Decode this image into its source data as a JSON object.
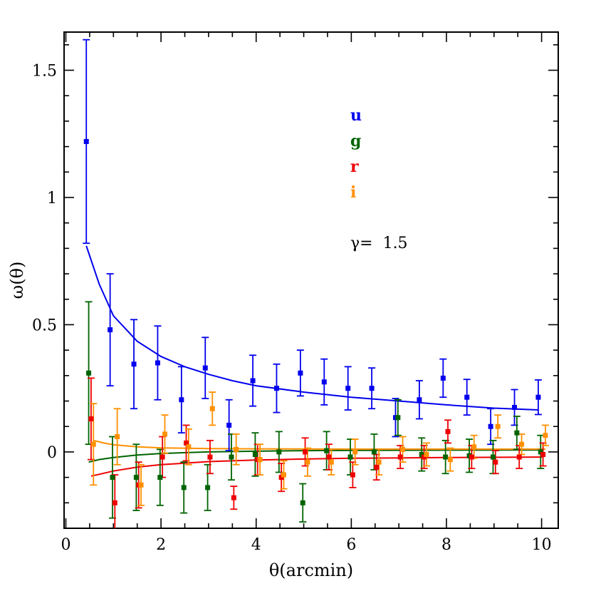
{
  "chart_data": {
    "type": "scatter",
    "xlabel": "θ(arcmin)",
    "ylabel": "ω(θ)",
    "xlim": [
      0,
      10.35
    ],
    "ylim": [
      -0.3,
      1.65
    ],
    "xticks": [
      0,
      2,
      4,
      6,
      8,
      10
    ],
    "yticks": [
      0,
      0.5,
      1,
      1.5
    ],
    "x_tick_labels": [
      "0",
      "2",
      "4",
      "6",
      "8",
      "10"
    ],
    "y_tick_labels": [
      "0",
      "0.5",
      "1",
      "1.5"
    ],
    "x_minor_step": 0.5,
    "y_minor_step": 0.1,
    "annotation": "γ=  1.5",
    "legend_placement": "upper-middle",
    "series": [
      {
        "name": "u",
        "color": "#0000ee",
        "x": [
          0.43,
          0.93,
          1.43,
          1.93,
          2.43,
          2.93,
          3.43,
          3.93,
          4.43,
          4.93,
          5.43,
          5.93,
          6.43,
          6.93,
          7.43,
          7.93,
          8.43,
          8.93,
          9.43,
          9.93
        ],
        "y": [
          1.22,
          0.48,
          0.345,
          0.35,
          0.205,
          0.33,
          0.105,
          0.28,
          0.25,
          0.31,
          0.275,
          0.25,
          0.25,
          0.135,
          0.205,
          0.29,
          0.215,
          0.1,
          0.175,
          0.215
        ],
        "err": [
          0.4,
          0.22,
          0.175,
          0.145,
          0.13,
          0.12,
          0.1,
          0.1,
          0.095,
          0.09,
          0.09,
          0.085,
          0.08,
          0.075,
          0.075,
          0.075,
          0.07,
          0.07,
          0.07,
          0.068
        ],
        "fit": {
          "x": [
            0.43,
            0.7,
            1.0,
            1.5,
            2.0,
            2.5,
            3.0,
            3.5,
            4.0,
            5.0,
            6.0,
            7.0,
            8.0,
            9.0,
            9.93
          ],
          "y": [
            0.81,
            0.66,
            0.535,
            0.435,
            0.375,
            0.335,
            0.305,
            0.28,
            0.26,
            0.235,
            0.215,
            0.2,
            0.185,
            0.172,
            0.165
          ]
        }
      },
      {
        "name": "g",
        "color": "#006400",
        "x": [
          0.48,
          0.98,
          1.48,
          1.98,
          2.48,
          2.98,
          3.48,
          3.98,
          4.48,
          4.98,
          5.48,
          5.98,
          6.48,
          6.98,
          7.48,
          7.98,
          8.48,
          8.98,
          9.48,
          9.98
        ],
        "y": [
          0.31,
          -0.1,
          -0.1,
          -0.1,
          -0.14,
          -0.14,
          -0.02,
          -0.01,
          0.0,
          -0.2,
          0.005,
          -0.02,
          0.0,
          0.135,
          -0.01,
          -0.02,
          -0.015,
          -0.02,
          0.075,
          0.0
        ],
        "err": [
          0.28,
          0.16,
          0.13,
          0.11,
          0.1,
          0.09,
          0.09,
          0.085,
          0.08,
          0.075,
          0.075,
          0.07,
          0.07,
          0.07,
          0.065,
          0.065,
          0.065,
          0.065,
          0.065,
          0.065
        ],
        "fit": {
          "x": [
            0.48,
            0.7,
            1.0,
            1.5,
            2.0,
            3.0,
            4.0,
            5.0,
            6.0,
            8.0,
            9.98
          ],
          "y": [
            -0.04,
            -0.03,
            -0.022,
            -0.012,
            -0.006,
            0.0,
            0.003,
            0.005,
            0.006,
            0.007,
            0.008
          ]
        }
      },
      {
        "name": "r",
        "color": "#ee0000",
        "x": [
          0.53,
          1.03,
          1.53,
          2.03,
          2.53,
          3.03,
          3.53,
          4.03,
          4.53,
          5.03,
          5.53,
          6.03,
          6.53,
          7.03,
          7.53,
          8.03,
          8.53,
          9.03,
          9.53,
          10.03
        ],
        "y": [
          0.13,
          -0.2,
          -0.13,
          -0.02,
          0.035,
          -0.02,
          -0.18,
          -0.03,
          -0.1,
          0.0,
          -0.02,
          -0.09,
          -0.06,
          -0.02,
          -0.02,
          0.08,
          -0.02,
          -0.04,
          -0.02,
          -0.01
        ],
        "err": [
          0.16,
          0.11,
          0.09,
          0.08,
          0.07,
          0.065,
          0.045,
          0.06,
          0.055,
          0.055,
          0.05,
          0.05,
          0.05,
          0.045,
          0.045,
          0.045,
          0.045,
          0.045,
          0.045,
          0.045
        ],
        "fit": {
          "x": [
            0.53,
            0.7,
            1.0,
            1.5,
            2.0,
            3.0,
            4.0,
            5.0,
            6.0,
            8.0,
            10.03
          ],
          "y": [
            -0.095,
            -0.088,
            -0.075,
            -0.06,
            -0.05,
            -0.038,
            -0.032,
            -0.028,
            -0.025,
            -0.022,
            -0.02
          ]
        }
      },
      {
        "name": "i",
        "color": "#ff9000",
        "x": [
          0.58,
          1.08,
          1.58,
          2.08,
          2.58,
          3.08,
          3.58,
          4.08,
          4.58,
          5.08,
          5.58,
          6.08,
          6.58,
          7.08,
          7.58,
          8.08,
          8.58,
          9.08,
          9.58,
          10.08
        ],
        "y": [
          0.03,
          0.06,
          -0.13,
          0.07,
          0.02,
          0.17,
          0.01,
          -0.03,
          -0.09,
          -0.04,
          -0.04,
          0.0,
          -0.04,
          0.01,
          -0.01,
          -0.03,
          0.02,
          0.1,
          0.03,
          0.065
        ],
        "err": [
          0.16,
          0.11,
          0.08,
          0.075,
          0.07,
          0.065,
          0.06,
          0.06,
          0.055,
          0.055,
          0.05,
          0.05,
          0.05,
          0.05,
          0.045,
          0.045,
          0.045,
          0.045,
          0.04,
          0.04
        ],
        "fit": {
          "x": [
            0.58,
            0.8,
            1.0,
            1.5,
            2.0,
            3.0,
            4.0,
            6.0,
            8.0,
            10.08
          ],
          "y": [
            0.045,
            0.035,
            0.028,
            0.02,
            0.016,
            0.013,
            0.012,
            0.011,
            0.011,
            0.011
          ]
        }
      }
    ]
  }
}
